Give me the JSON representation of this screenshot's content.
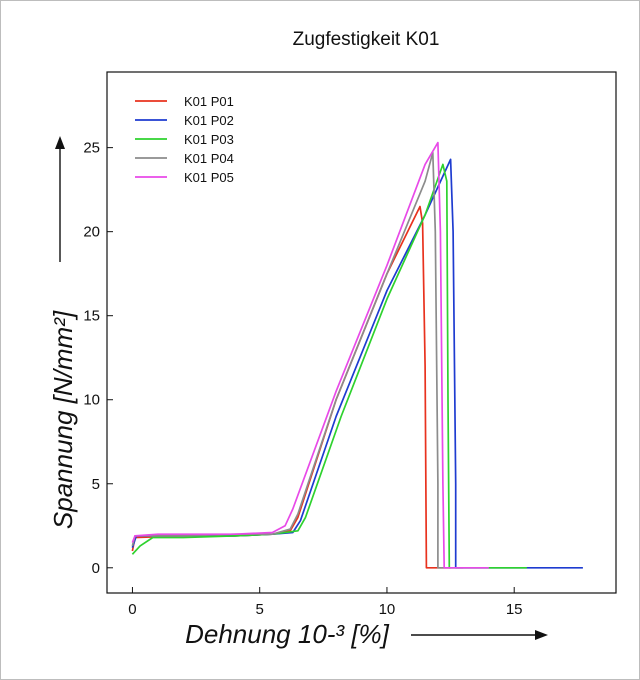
{
  "chart_data": {
    "type": "line",
    "title": "Zugfestigkeit K01",
    "xlabel": "Dehnung 10-³ [%]",
    "ylabel": "Spannung [N/mm²]",
    "xlim": [
      -1,
      19
    ],
    "ylim": [
      -1.5,
      29.5
    ],
    "xticks": [
      0,
      5,
      10,
      15
    ],
    "yticks": [
      0,
      5,
      10,
      15,
      20,
      25
    ],
    "grid": false,
    "legend_position": "top-left",
    "series": [
      {
        "name": "K01 P01",
        "color": "#e8321e",
        "points": [
          [
            0.0,
            1.0
          ],
          [
            0.1,
            1.8
          ],
          [
            2.0,
            1.9
          ],
          [
            4.0,
            1.9
          ],
          [
            5.5,
            2.0
          ],
          [
            6.2,
            2.2
          ],
          [
            6.5,
            3.0
          ],
          [
            8.0,
            10.0
          ],
          [
            10.0,
            17.5
          ],
          [
            11.3,
            21.5
          ],
          [
            11.4,
            20.5
          ],
          [
            11.5,
            12.0
          ],
          [
            11.55,
            0.0
          ],
          [
            12.5,
            0.0
          ]
        ]
      },
      {
        "name": "K01 P02",
        "color": "#1e3cd0",
        "points": [
          [
            0.0,
            1.2
          ],
          [
            0.15,
            1.9
          ],
          [
            2.0,
            1.9
          ],
          [
            4.0,
            1.9
          ],
          [
            5.5,
            2.0
          ],
          [
            6.3,
            2.1
          ],
          [
            6.6,
            2.8
          ],
          [
            8.0,
            9.0
          ],
          [
            10.0,
            16.5
          ],
          [
            11.5,
            21.0
          ],
          [
            12.5,
            24.3
          ],
          [
            12.6,
            20.0
          ],
          [
            12.7,
            5.0
          ],
          [
            12.7,
            0.0
          ],
          [
            14.0,
            0.0
          ],
          [
            16.0,
            0.0
          ],
          [
            17.7,
            0.0
          ]
        ]
      },
      {
        "name": "K01 P03",
        "color": "#2ed22e",
        "points": [
          [
            0.0,
            0.8
          ],
          [
            0.3,
            1.3
          ],
          [
            0.8,
            1.8
          ],
          [
            2.0,
            1.8
          ],
          [
            4.0,
            1.9
          ],
          [
            5.5,
            2.0
          ],
          [
            6.5,
            2.2
          ],
          [
            6.8,
            3.0
          ],
          [
            8.2,
            9.0
          ],
          [
            10.0,
            16.0
          ],
          [
            11.5,
            21.0
          ],
          [
            12.2,
            24.0
          ],
          [
            12.35,
            23.0
          ],
          [
            12.4,
            10.0
          ],
          [
            12.45,
            0.0
          ],
          [
            14.0,
            0.0
          ],
          [
            15.5,
            0.0
          ]
        ]
      },
      {
        "name": "K01 P04",
        "color": "#8c8c8c",
        "points": [
          [
            0.0,
            1.3
          ],
          [
            0.1,
            1.9
          ],
          [
            2.0,
            1.9
          ],
          [
            4.0,
            2.0
          ],
          [
            5.5,
            2.0
          ],
          [
            6.2,
            2.3
          ],
          [
            6.5,
            3.2
          ],
          [
            8.0,
            10.0
          ],
          [
            10.0,
            17.5
          ],
          [
            11.5,
            23.0
          ],
          [
            11.8,
            24.7
          ],
          [
            11.9,
            20.0
          ],
          [
            12.0,
            5.0
          ],
          [
            12.0,
            0.0
          ],
          [
            13.0,
            0.0
          ]
        ]
      },
      {
        "name": "K01 P05",
        "color": "#e84ae8",
        "points": [
          [
            0.0,
            1.5
          ],
          [
            0.1,
            1.9
          ],
          [
            1.0,
            2.0
          ],
          [
            2.0,
            2.0
          ],
          [
            4.0,
            2.0
          ],
          [
            5.5,
            2.1
          ],
          [
            6.0,
            2.5
          ],
          [
            6.3,
            3.5
          ],
          [
            8.0,
            10.5
          ],
          [
            10.0,
            18.0
          ],
          [
            11.5,
            24.0
          ],
          [
            12.0,
            25.3
          ],
          [
            12.1,
            20.0
          ],
          [
            12.2,
            5.0
          ],
          [
            12.25,
            0.0
          ],
          [
            13.0,
            0.0
          ],
          [
            14.0,
            0.0
          ]
        ]
      }
    ]
  }
}
